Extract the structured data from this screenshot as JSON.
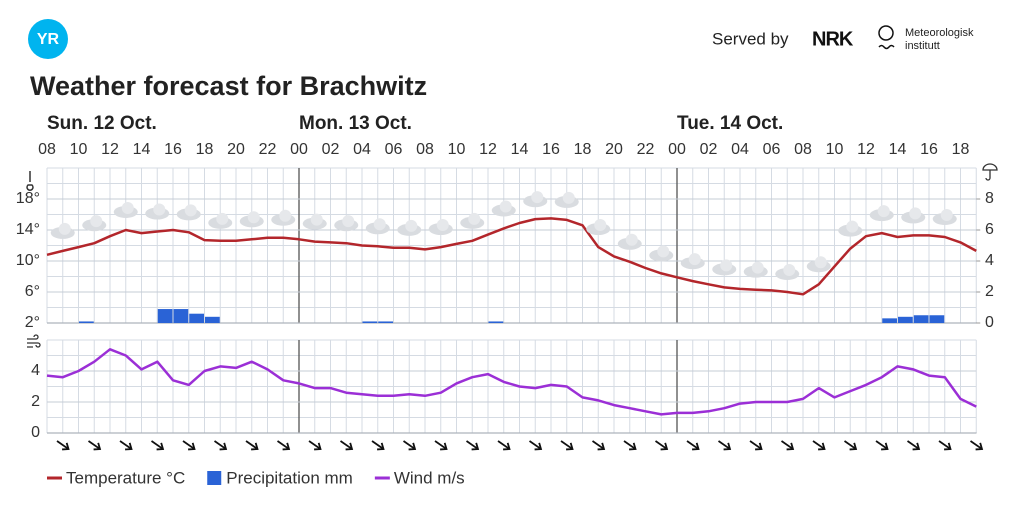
{
  "header": {
    "logo": "YR",
    "served_by": "Served by",
    "nrk": "NRK",
    "met": [
      "Meteorologisk",
      "institutt"
    ]
  },
  "chart_data": [
    {
      "type": "line",
      "title": "Weather forecast for Brachwitz",
      "days": [
        "Sun. 12 Oct.",
        "Mon. 13 Oct.",
        "Tue. 14 Oct."
      ],
      "categories": [
        "08",
        null,
        "10",
        null,
        "12",
        null,
        "14",
        null,
        "16",
        null,
        "18",
        null,
        "20",
        null,
        "22",
        null,
        "00",
        null,
        "02",
        null,
        "04",
        null,
        "06",
        null,
        "08",
        null,
        "10",
        null,
        "12",
        null,
        "14",
        null,
        "16",
        null,
        "18",
        null,
        "20",
        null,
        "22",
        null,
        "00",
        null,
        "02",
        null,
        "04",
        null,
        "06",
        null,
        "08",
        null,
        "10",
        null,
        "12",
        null,
        "14",
        null,
        "16",
        null,
        "18",
        null
      ],
      "series": [
        {
          "name": "Temperature °C",
          "color": "#b3262b",
          "values": [
            10.8,
            11.3,
            11.8,
            12.3,
            13.2,
            14.0,
            13.6,
            13.8,
            14.0,
            13.7,
            12.7,
            12.6,
            12.6,
            12.8,
            13.0,
            13.0,
            12.8,
            12.5,
            12.4,
            12.3,
            12.0,
            11.9,
            11.7,
            11.7,
            11.5,
            11.8,
            12.2,
            12.6,
            13.4,
            14.2,
            14.9,
            15.4,
            15.5,
            15.3,
            14.6,
            11.8,
            10.6,
            9.9,
            9.1,
            8.4,
            7.9,
            7.4,
            7.0,
            6.6,
            6.4,
            6.3,
            6.2,
            6.0,
            5.7,
            7.0,
            9.3,
            11.6,
            13.2,
            13.6,
            13.1,
            13.3,
            13.3,
            13.1,
            12.4,
            11.3
          ]
        },
        {
          "name": "Precipitation mm",
          "color": "#2a63d6",
          "type": "bar",
          "axis": "y2",
          "values": [
            0,
            0,
            0.1,
            0,
            0,
            0,
            0,
            0.9,
            0.9,
            0.6,
            0.4,
            0,
            0,
            0,
            0,
            0,
            0,
            0,
            0,
            0,
            0.1,
            0.1,
            0,
            0,
            0,
            0,
            0,
            0,
            0.1,
            0,
            0,
            0,
            0,
            0,
            0,
            0,
            0,
            0,
            0,
            0,
            0,
            0,
            0,
            0,
            0,
            0,
            0,
            0,
            0,
            0,
            0,
            0,
            0,
            0.3,
            0.4,
            0.5,
            0.5,
            0,
            0,
            0
          ]
        }
      ],
      "ylim": [
        2,
        22
      ],
      "yticks": [
        {
          "value": 2,
          "label": "2°"
        },
        {
          "value": 6,
          "label": "6°"
        },
        {
          "value": 10,
          "label": "10°"
        },
        {
          "value": 14,
          "label": "14°"
        },
        {
          "value": 18,
          "label": "18°"
        }
      ],
      "y2lim": [
        0,
        10
      ],
      "y2ticks": [
        0,
        2,
        4,
        6,
        8
      ],
      "grid": true
    },
    {
      "type": "line",
      "series": [
        {
          "name": "Wind m/s",
          "color": "#9b2fd6",
          "values": [
            3.7,
            3.6,
            4.0,
            4.6,
            5.4,
            5.0,
            4.1,
            4.6,
            3.4,
            3.1,
            4.0,
            4.3,
            4.2,
            4.6,
            4.1,
            3.4,
            3.2,
            2.9,
            2.9,
            2.6,
            2.5,
            2.4,
            2.4,
            2.5,
            2.4,
            2.6,
            3.2,
            3.6,
            3.8,
            3.3,
            3.0,
            2.9,
            3.1,
            3.0,
            2.3,
            2.1,
            1.8,
            1.6,
            1.4,
            1.2,
            1.3,
            1.3,
            1.4,
            1.6,
            1.9,
            2.0,
            2.0,
            2.0,
            2.2,
            2.9,
            2.3,
            2.7,
            3.1,
            3.6,
            4.3,
            4.1,
            3.7,
            3.6,
            2.2,
            1.7
          ]
        }
      ],
      "ylim": [
        0,
        6
      ],
      "yticks": [
        0,
        2,
        4
      ],
      "grid": true
    }
  ]
}
